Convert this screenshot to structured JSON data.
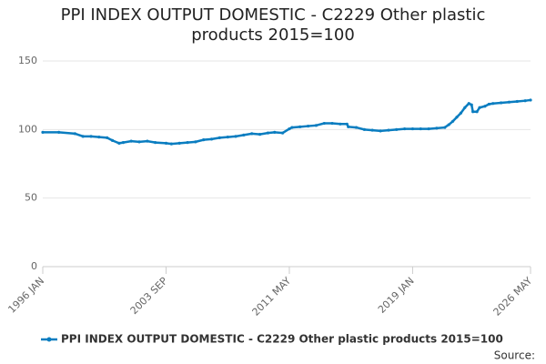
{
  "chart_data": {
    "type": "line",
    "title": "PPI INDEX OUTPUT DOMESTIC - C2229 Other plastic products 2015=100",
    "source": "Source:",
    "x": [
      "1996 JAN",
      "1997 JAN",
      "1998 JAN",
      "1998 JUL",
      "1999 JAN",
      "1999 JUL",
      "2000 JAN",
      "2000 MAY",
      "2000 OCT",
      "2001 JAN",
      "2001 JUL",
      "2002 JAN",
      "2002 JUL",
      "2003 JAN",
      "2003 SEP",
      "2004 JAN",
      "2004 JUL",
      "2005 JAN",
      "2005 JUL",
      "2006 JAN",
      "2006 JUL",
      "2007 JAN",
      "2007 JUL",
      "2008 JAN",
      "2008 JUL",
      "2009 JAN",
      "2009 JUL",
      "2010 JAN",
      "2010 JUN",
      "2010 DEC",
      "2011 MAY",
      "2011 JUL",
      "2012 JAN",
      "2012 JUL",
      "2013 JAN",
      "2013 JUL",
      "2014 JAN",
      "2014 JUL",
      "2014 DEC",
      "2015 JAN",
      "2015 JUL",
      "2016 JAN",
      "2016 JUL",
      "2017 JAN",
      "2017 JUL",
      "2018 JAN",
      "2018 JUL",
      "2019 JAN",
      "2019 JUL",
      "2020 JAN",
      "2020 JUL",
      "2021 JAN",
      "2021 APR",
      "2021 JUL",
      "2021 OCT",
      "2022 JAN",
      "2022 APR",
      "2022 JUL",
      "2022 SEP",
      "2022 OCT",
      "2023 JAN",
      "2023 MAR",
      "2023 JUL",
      "2023 OCT",
      "2024 JAN",
      "2024 JUL",
      "2025 JAN",
      "2025 JUL",
      "2026 JAN",
      "2026 MAY"
    ],
    "series": [
      {
        "name": "PPI INDEX OUTPUT DOMESTIC - C2229 Other plastic products 2015=100",
        "color": "#0a7dc0",
        "values": [
          98,
          98,
          97,
          95,
          95,
          94.5,
          94,
          92,
          90,
          90.5,
          91.5,
          91,
          91.5,
          90.5,
          90,
          89.5,
          90,
          90.5,
          91,
          92.5,
          93,
          94,
          94.5,
          95,
          96,
          97,
          96.5,
          97.5,
          98,
          97.5,
          100.5,
          101.5,
          102,
          102.5,
          103,
          104.5,
          104.5,
          104,
          104,
          102,
          101.5,
          100,
          99.5,
          99,
          99.5,
          100,
          100.5,
          100.5,
          100.5,
          100.5,
          101,
          101.5,
          103.5,
          106,
          109,
          112,
          116,
          119,
          118,
          113,
          113,
          116,
          117,
          118.5,
          119,
          119.5,
          120,
          120.5,
          121,
          121.5
        ]
      }
    ],
    "xticks": [
      "1996 JAN",
      "2003 SEP",
      "2011 MAY",
      "2019 JAN",
      "2026 MAY"
    ],
    "ylim": [
      0,
      150
    ],
    "yticks": [
      0,
      50,
      100,
      150
    ],
    "grid": true
  }
}
